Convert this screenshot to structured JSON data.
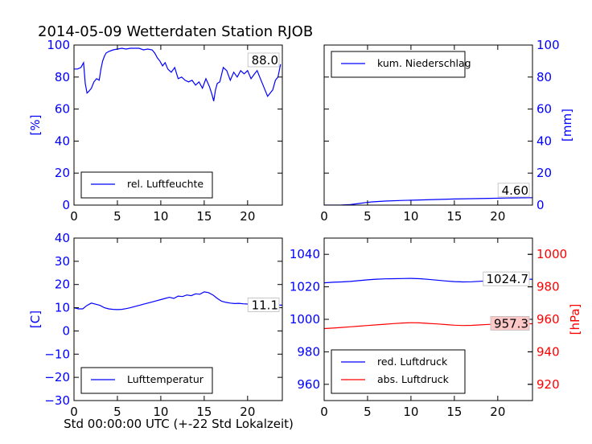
{
  "figure": {
    "title": "2014-05-09 Wetterdaten Station RJOB",
    "xlabel": "Std 00:00:00 UTC (+-22 Std Lokalzeit)"
  },
  "colors": {
    "blue": "#0000ff",
    "red": "#ff0000",
    "axis": "#000000"
  },
  "chart_data": [
    {
      "type": "line",
      "id": "humidity",
      "ylabel": "[%]",
      "xlim": [
        0,
        24
      ],
      "ylim": [
        0,
        100
      ],
      "xticks": [
        0,
        5,
        10,
        15,
        20
      ],
      "yticks": [
        0,
        20,
        40,
        60,
        80,
        100
      ],
      "legend_placement": "lower-left",
      "annotation": "88.0",
      "series": [
        {
          "name": "rel. Luftfeuchte",
          "color": "#0000ff",
          "x": [
            0,
            0.4,
            0.8,
            1.1,
            1.3,
            1.5,
            1.7,
            2.0,
            2.3,
            2.6,
            2.9,
            3.1,
            3.3,
            3.5,
            3.7,
            4.0,
            4.5,
            5.0,
            5.5,
            6.0,
            6.5,
            7.0,
            7.5,
            8.0,
            8.5,
            9.0,
            9.3,
            9.6,
            9.9,
            10.2,
            10.5,
            10.8,
            11.2,
            11.6,
            12.0,
            12.4,
            12.8,
            13.2,
            13.6,
            14.0,
            14.4,
            14.8,
            15.2,
            15.6,
            15.9,
            16.1,
            16.3,
            16.5,
            16.8,
            17.2,
            17.6,
            18.0,
            18.4,
            18.8,
            19.2,
            19.6,
            20.0,
            20.4,
            20.8,
            21.1,
            21.4,
            21.7,
            22.0,
            22.3,
            22.6,
            22.9,
            23.2,
            23.5,
            23.8
          ],
          "y": [
            85,
            85,
            86,
            89,
            76,
            70,
            71,
            73,
            77,
            79,
            78,
            85,
            90,
            93,
            95,
            96,
            97,
            97.5,
            98,
            97.5,
            98,
            98,
            98,
            97,
            97.5,
            97,
            95,
            92,
            90,
            87,
            89,
            85,
            83,
            86,
            79,
            80,
            78,
            77,
            78,
            75,
            77,
            73,
            79,
            74,
            69,
            65,
            72,
            76,
            77,
            86,
            84,
            78,
            83,
            80,
            84,
            82,
            84,
            79,
            82,
            84,
            80,
            76,
            72,
            68,
            70,
            72,
            78,
            80,
            88
          ]
        }
      ]
    },
    {
      "type": "line",
      "id": "precipitation",
      "ylabel": "[mm]",
      "xlim": [
        0,
        24
      ],
      "ylim": [
        0,
        100
      ],
      "xticks": [
        0,
        5,
        10,
        15,
        20
      ],
      "yticks": [
        0,
        20,
        40,
        60,
        80,
        100
      ],
      "legend_placement": "upper-left",
      "annotation": "4.60",
      "series": [
        {
          "name": "kum. Niederschlag",
          "color": "#0000ff",
          "x": [
            0,
            2,
            3,
            4,
            4.8,
            5.5,
            7,
            9,
            11,
            13,
            15,
            17,
            19,
            21,
            23,
            24
          ],
          "y": [
            0,
            0.1,
            0.3,
            1.0,
            1.6,
            2.0,
            2.5,
            2.9,
            3.2,
            3.5,
            3.8,
            4.0,
            4.2,
            4.4,
            4.55,
            4.6
          ]
        }
      ]
    },
    {
      "type": "line",
      "id": "temperature",
      "ylabel": "[C]",
      "xlim": [
        0,
        24
      ],
      "ylim": [
        -30,
        40
      ],
      "xticks": [
        0,
        5,
        10,
        15,
        20
      ],
      "yticks": [
        -30,
        -20,
        -10,
        0,
        10,
        20,
        30,
        40
      ],
      "legend_placement": "lower-left",
      "annotation": "11.1",
      "series": [
        {
          "name": "Lufttemperatur",
          "color": "#0000ff",
          "x": [
            0,
            0.5,
            1.0,
            1.5,
            2.0,
            2.5,
            3.0,
            3.5,
            4.0,
            4.5,
            5.0,
            5.5,
            6.0,
            6.5,
            7.0,
            7.5,
            8.0,
            8.5,
            9.0,
            9.5,
            10.0,
            10.5,
            11.0,
            11.5,
            12.0,
            12.5,
            13.0,
            13.5,
            14.0,
            14.5,
            15.0,
            15.5,
            16.0,
            16.5,
            17.0,
            17.5,
            18.0,
            18.5,
            19.0,
            19.5,
            20.0,
            20.5,
            21.0,
            21.5,
            22.0,
            22.5,
            23.0,
            23.5,
            24.0
          ],
          "y": [
            10,
            9.5,
            9.5,
            11,
            12,
            11.5,
            11,
            10,
            9.5,
            9.3,
            9.2,
            9.3,
            9.6,
            10,
            10.5,
            11,
            11.5,
            12,
            12.5,
            13,
            13.5,
            14,
            14.5,
            14,
            15,
            14.8,
            15.5,
            15.2,
            16,
            15.8,
            16.8,
            16.5,
            15.5,
            14,
            12.8,
            12.3,
            12,
            11.8,
            11.9,
            11.7,
            11.6,
            11.7,
            11.8,
            11.5,
            11.6,
            11.2,
            11.0,
            11.1,
            11.1
          ]
        }
      ]
    },
    {
      "type": "line",
      "id": "pressure",
      "ylabel_right": "[hPa]",
      "xlim": [
        0,
        24
      ],
      "ylim_left": [
        950,
        1050
      ],
      "ylim_right": [
        910,
        1010
      ],
      "xticks": [
        0,
        5,
        10,
        15,
        20
      ],
      "yticks_left": [
        960,
        980,
        1000,
        1020,
        1040
      ],
      "yticks_right": [
        920,
        940,
        960,
        980,
        1000
      ],
      "legend_placement": "lower-left",
      "annotations": [
        "1024.7",
        "957.3"
      ],
      "series": [
        {
          "name": "red. Luftdruck",
          "color": "#0000ff",
          "axis": "left",
          "x": [
            0,
            1,
            2,
            3,
            4,
            5,
            6,
            7,
            8,
            9,
            10,
            11,
            12,
            13,
            14,
            15,
            16,
            17,
            18,
            19,
            20,
            21,
            22,
            23,
            24
          ],
          "y": [
            1022.5,
            1022.8,
            1023.0,
            1023.3,
            1023.8,
            1024.3,
            1024.7,
            1024.9,
            1025.0,
            1025.1,
            1025.2,
            1025.0,
            1024.6,
            1024.1,
            1023.6,
            1023.2,
            1023.0,
            1023.1,
            1023.4,
            1023.7,
            1024.0,
            1024.3,
            1024.5,
            1024.6,
            1024.7
          ]
        },
        {
          "name": "abs. Luftdruck",
          "color": "#ff0000",
          "axis": "right",
          "x": [
            0,
            1,
            2,
            3,
            4,
            5,
            6,
            7,
            8,
            9,
            10,
            11,
            12,
            13,
            14,
            15,
            16,
            17,
            18,
            19,
            20,
            21,
            22,
            23,
            24
          ],
          "y": [
            954.3,
            954.6,
            955.0,
            955.4,
            955.8,
            956.2,
            956.6,
            957.0,
            957.4,
            957.7,
            957.9,
            957.8,
            957.5,
            957.2,
            956.8,
            956.4,
            956.2,
            956.3,
            956.6,
            956.9,
            957.1,
            957.2,
            957.3,
            957.3,
            957.3
          ]
        }
      ]
    }
  ]
}
